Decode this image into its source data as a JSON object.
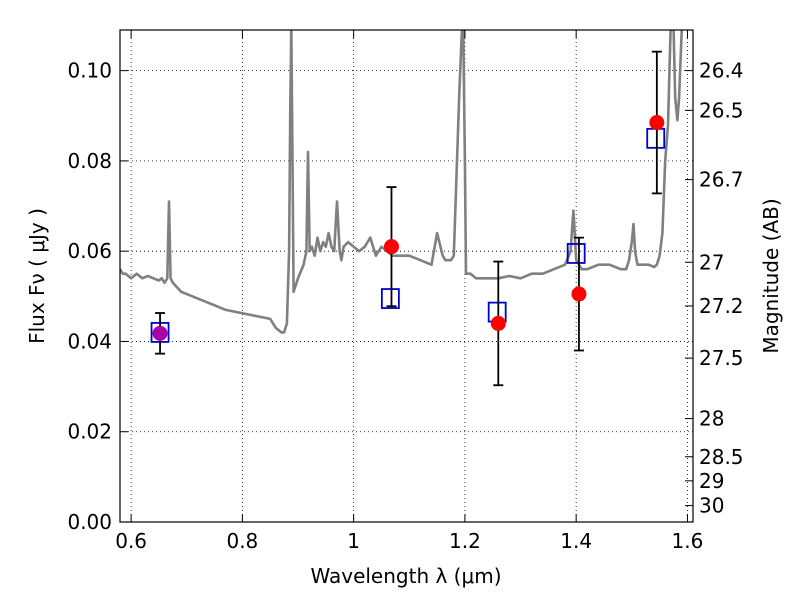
{
  "chart_data": {
    "type": "scatter",
    "xlabel": "Wavelength  λ (μm)",
    "ylabel": "Flux  Fν  ( μJy )",
    "y2label": "Magnitude (AB)",
    "xlim": [
      0.58,
      1.61
    ],
    "ylim": [
      0.0,
      0.109
    ],
    "grid": true,
    "x_ticks": [
      0.6,
      0.8,
      1.0,
      1.2,
      1.4,
      1.6
    ],
    "x_tick_labels": [
      "0.6",
      "0.8",
      "1",
      "1.2",
      "1.4",
      "1.6"
    ],
    "y_ticks": [
      0.0,
      0.02,
      0.04,
      0.06,
      0.08,
      0.1
    ],
    "y_tick_labels": [
      "0.00",
      "0.02",
      "0.04",
      "0.06",
      "0.08",
      "0.10"
    ],
    "y2_ticks": [
      26.4,
      26.5,
      26.7,
      27,
      27.2,
      27.5,
      28,
      28.5,
      29,
      30
    ],
    "y2_tick_labels": [
      "26.4",
      "26.5",
      "26.7",
      "27",
      "27.2",
      "27.5",
      "28",
      "28.5",
      "29",
      "30"
    ],
    "series": [
      {
        "kind": "line",
        "color": "#808080",
        "x": [
          0.58,
          0.585,
          0.59,
          0.6,
          0.61,
          0.62,
          0.63,
          0.64,
          0.65,
          0.655,
          0.66,
          0.665,
          0.668,
          0.671,
          0.675,
          0.69,
          0.71,
          0.73,
          0.75,
          0.77,
          0.79,
          0.81,
          0.83,
          0.85,
          0.86,
          0.87,
          0.875,
          0.88,
          0.884,
          0.886,
          0.888,
          0.89,
          0.892,
          0.9,
          0.91,
          0.915,
          0.918,
          0.921,
          0.925,
          0.93,
          0.935,
          0.94,
          0.945,
          0.95,
          0.955,
          0.96,
          0.965,
          0.97,
          0.975,
          0.978,
          0.982,
          0.99,
          1.0,
          1.01,
          1.02,
          1.03,
          1.04,
          1.05,
          1.06,
          1.07,
          1.08,
          1.1,
          1.12,
          1.14,
          1.15,
          1.16,
          1.165,
          1.17,
          1.175,
          1.18,
          1.19,
          1.195,
          1.197,
          1.2,
          1.202,
          1.21,
          1.22,
          1.24,
          1.26,
          1.28,
          1.3,
          1.32,
          1.34,
          1.36,
          1.38,
          1.39,
          1.395,
          1.4,
          1.405,
          1.41,
          1.42,
          1.44,
          1.46,
          1.48,
          1.49,
          1.495,
          1.5,
          1.503,
          1.506,
          1.51,
          1.52,
          1.53,
          1.54,
          1.545,
          1.55,
          1.555,
          1.56,
          1.565,
          1.57,
          1.575,
          1.578,
          1.582,
          1.585,
          1.59,
          1.6,
          1.61
        ],
        "y": [
          0.056,
          0.055,
          0.055,
          0.054,
          0.055,
          0.054,
          0.0545,
          0.054,
          0.0535,
          0.054,
          0.053,
          0.054,
          0.071,
          0.054,
          0.053,
          0.051,
          0.05,
          0.049,
          0.048,
          0.047,
          0.0465,
          0.046,
          0.0455,
          0.045,
          0.043,
          0.042,
          0.042,
          0.044,
          0.06,
          0.09,
          0.11,
          0.08,
          0.051,
          0.054,
          0.057,
          0.06,
          0.082,
          0.06,
          0.061,
          0.059,
          0.063,
          0.06,
          0.062,
          0.061,
          0.064,
          0.061,
          0.06,
          0.071,
          0.06,
          0.058,
          0.061,
          0.062,
          0.061,
          0.06,
          0.061,
          0.063,
          0.059,
          0.061,
          0.06,
          0.059,
          0.059,
          0.059,
          0.058,
          0.057,
          0.064,
          0.059,
          0.058,
          0.058,
          0.058,
          0.059,
          0.095,
          0.11,
          0.11,
          0.08,
          0.055,
          0.055,
          0.054,
          0.054,
          0.054,
          0.0545,
          0.054,
          0.055,
          0.055,
          0.056,
          0.057,
          0.06,
          0.069,
          0.058,
          0.057,
          0.056,
          0.056,
          0.057,
          0.057,
          0.056,
          0.056,
          0.058,
          0.062,
          0.066,
          0.06,
          0.057,
          0.057,
          0.057,
          0.0565,
          0.057,
          0.059,
          0.064,
          0.08,
          0.088,
          0.11,
          0.11,
          0.094,
          0.089,
          0.094,
          0.11,
          0.11,
          0.11
        ]
      },
      {
        "kind": "squares",
        "color": "#0000cc",
        "x": [
          0.652,
          1.066,
          1.258,
          1.4,
          1.543
        ],
        "y": [
          0.042,
          0.0495,
          0.0465,
          0.0595,
          0.085
        ]
      },
      {
        "kind": "points",
        "color": "#ff0000",
        "x": [
          1.068,
          1.26,
          1.405,
          1.545
        ],
        "y": [
          0.061,
          0.044,
          0.0505,
          0.0885
        ],
        "yerr": [
          0.0132,
          0.0137,
          0.0125,
          0.0157
        ]
      },
      {
        "kind": "points",
        "color": "#aa00aa",
        "x": [
          0.652
        ],
        "y": [
          0.0418
        ],
        "yerr": [
          0.0045
        ]
      }
    ]
  }
}
